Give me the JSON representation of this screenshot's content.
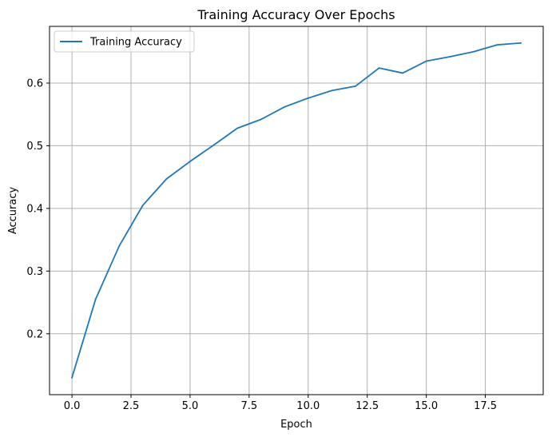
{
  "chart_data": {
    "type": "line",
    "title": "Training Accuracy Over Epochs",
    "xlabel": "Epoch",
    "ylabel": "Accuracy",
    "xlim": [
      -0.95,
      19.95
    ],
    "ylim": [
      0.1028,
      0.6905
    ],
    "xticks": [
      0.0,
      2.5,
      5.0,
      7.5,
      10.0,
      12.5,
      15.0,
      17.5
    ],
    "xtick_labels": [
      "0.0",
      "2.5",
      "5.0",
      "7.5",
      "10.0",
      "12.5",
      "15.0",
      "17.5"
    ],
    "yticks": [
      0.2,
      0.3,
      0.4,
      0.5,
      0.6
    ],
    "ytick_labels": [
      "0.2",
      "0.3",
      "0.4",
      "0.5",
      "0.6"
    ],
    "grid": true,
    "legend_position": "top-left",
    "series": [
      {
        "name": "Training Accuracy",
        "color": "#1f77b4",
        "x": [
          0,
          1,
          2,
          3,
          4,
          5,
          6,
          7,
          8,
          9,
          10,
          11,
          12,
          13,
          14,
          15,
          16,
          17,
          18,
          19
        ],
        "values": [
          0.13,
          0.255,
          0.34,
          0.405,
          0.447,
          0.475,
          0.501,
          0.528,
          0.542,
          0.562,
          0.576,
          0.588,
          0.595,
          0.624,
          0.616,
          0.635,
          0.642,
          0.65,
          0.661,
          0.664
        ]
      }
    ]
  }
}
